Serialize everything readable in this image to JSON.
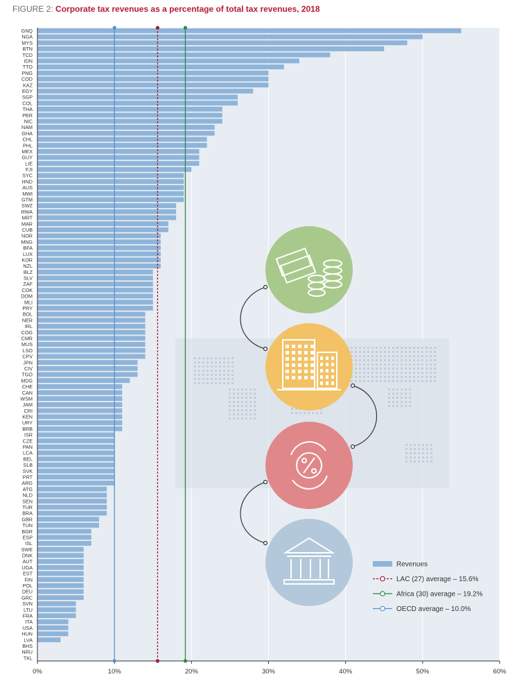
{
  "figure": {
    "label": "FIGURE 2:",
    "title": "Corporate tax revenues as a percentage of total tax revenues, 2018"
  },
  "colors": {
    "bar": "#8fb4d9",
    "plot_bg": "#e8edf3",
    "lac": "#a11d33",
    "africa": "#2a8a43",
    "oecd": "#5b8fc6",
    "circle_green": "#a8c98b",
    "circle_yellow": "#f3c266",
    "circle_red": "#e0878a",
    "circle_blue": "#b3c8db"
  },
  "icons": [
    "money-stack-icon",
    "office-buildings-icon",
    "percent-cycle-icon",
    "government-building-icon",
    "world-map-icon"
  ],
  "chart_data": {
    "type": "bar",
    "orientation": "horizontal",
    "xlim": [
      0,
      60
    ],
    "xticks": [
      "0%",
      "10%",
      "20%",
      "30%",
      "40%",
      "50%",
      "60%"
    ],
    "grid": true,
    "legend_position": "bottom-right",
    "categories": [
      "GNQ",
      "NGA",
      "MYS",
      "BTN",
      "TCD",
      "IDN",
      "TTO",
      "PNG",
      "COD",
      "KAZ",
      "EGY",
      "SGP",
      "COL",
      "THA",
      "PER",
      "NIC",
      "NAM",
      "GHA",
      "CHL",
      "PHL",
      "MEX",
      "GUY",
      "LIE",
      "FJI",
      "SYC",
      "HND",
      "AUS",
      "MWI",
      "GTM",
      "SWZ",
      "RWA",
      "MRT",
      "MAR",
      "CUB",
      "NOR",
      "MNG",
      "BFA",
      "LUX",
      "KOR",
      "NZL",
      "BLZ",
      "SLV",
      "ZAF",
      "COK",
      "DOM",
      "MLI",
      "PRY",
      "BOL",
      "NER",
      "IRL",
      "COG",
      "CMR",
      "MUS",
      "LSO",
      "CPV",
      "JPN",
      "CIV",
      "TGO",
      "MDG",
      "CHE",
      "CAN",
      "WSM",
      "JAM",
      "CRI",
      "KEN",
      "URY",
      "BRB",
      "ISR",
      "CZE",
      "PAN",
      "LCA",
      "BEL",
      "SLB",
      "SVK",
      "PRT",
      "ARG",
      "ATG",
      "NLD",
      "SEN",
      "TUR",
      "BRA",
      "GBR",
      "TUN",
      "BGR",
      "ESP",
      "ISL",
      "SWE",
      "DNK",
      "AUT",
      "UGA",
      "EST",
      "FIN",
      "POL",
      "DEU",
      "GRC",
      "SVN",
      "LTU",
      "FRA",
      "ITA",
      "USA",
      "HUN",
      "LVA",
      "BHS",
      "NRU",
      "TKL"
    ],
    "series": [
      {
        "name": "Revenues",
        "values": [
          55,
          50,
          48,
          45,
          38,
          34,
          32,
          30,
          30,
          30,
          28,
          26,
          26,
          24,
          24,
          24,
          23,
          23,
          22,
          22,
          21,
          21,
          21,
          20,
          19,
          19,
          19,
          19,
          19,
          18,
          18,
          18,
          17,
          17,
          16,
          16,
          16,
          16,
          16,
          16,
          15,
          15,
          15,
          15,
          15,
          15,
          15,
          14,
          14,
          14,
          14,
          14,
          14,
          14,
          14,
          13,
          13,
          13,
          12,
          11,
          11,
          11,
          11,
          11,
          11,
          11,
          11,
          10,
          10,
          10,
          10,
          10,
          10,
          10,
          10,
          10,
          9,
          9,
          9,
          9,
          9,
          8,
          8,
          7,
          7,
          7,
          6,
          6,
          6,
          6,
          6,
          6,
          6,
          6,
          6,
          5,
          5,
          5,
          4,
          4,
          4,
          3,
          0,
          0,
          0
        ]
      }
    ],
    "reference_lines": [
      {
        "key": "lac",
        "label": "LAC (27) average – 15.6%",
        "value": 15.6,
        "style": "dashed"
      },
      {
        "key": "africa",
        "label": "Africa (30) average – 19.2%",
        "value": 19.2,
        "style": "solid"
      },
      {
        "key": "oecd",
        "label": "OECD average – 10.0%",
        "value": 10.0,
        "style": "solid"
      }
    ]
  }
}
